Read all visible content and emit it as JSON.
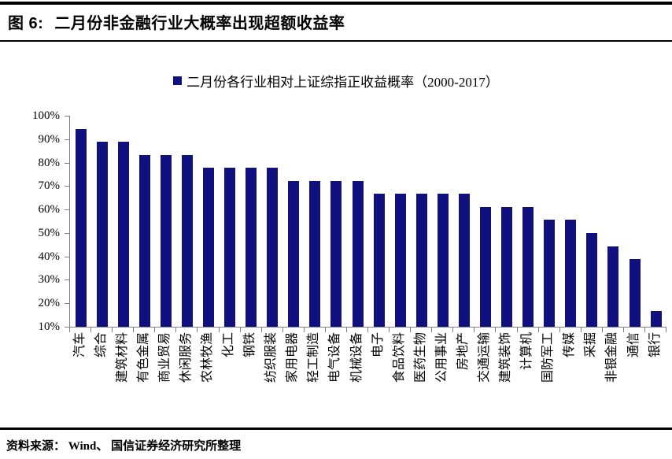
{
  "header": {
    "figure_label": "图 6:",
    "title": "二月份非金融行业大概率出现超额收益率"
  },
  "legend": {
    "label": "二月份各行业相对上证综指正收益概率（2000-2017）"
  },
  "chart_data": {
    "type": "bar",
    "title": "二月份各行业相对上证综指正收益概率（2000-2017）",
    "categories": [
      "汽车",
      "综合",
      "建筑材料",
      "有色金属",
      "商业贸易",
      "休闲服务",
      "农林牧渔",
      "化工",
      "钢铁",
      "纺织服装",
      "家用电器",
      "轻工制造",
      "电气设备",
      "机械设备",
      "电子",
      "食品饮料",
      "医药生物",
      "公用事业",
      "房地产",
      "交通运输",
      "建筑装饰",
      "计算机",
      "国防军工",
      "传媒",
      "采掘",
      "非银金融",
      "通信",
      "银行"
    ],
    "values": [
      94.4,
      88.9,
      88.9,
      83.3,
      83.3,
      83.3,
      77.8,
      77.8,
      77.8,
      77.8,
      72.2,
      72.2,
      72.2,
      72.2,
      66.7,
      66.7,
      66.7,
      66.7,
      66.7,
      61.1,
      61.1,
      61.1,
      55.6,
      55.6,
      50.0,
      44.4,
      38.9,
      16.7
    ],
    "unit": "%",
    "ylim": [
      10,
      100
    ],
    "ytick_labels": [
      "100%",
      "90%",
      "80%",
      "70%",
      "60%",
      "50%",
      "40%",
      "30%",
      "20%",
      "10%"
    ],
    "grid": false,
    "legend_position": "top",
    "bar_color": "#10107E",
    "axis_color": "#808080"
  },
  "footer": {
    "source": "资料来源： Wind、 国信证券经济研究所整理"
  }
}
